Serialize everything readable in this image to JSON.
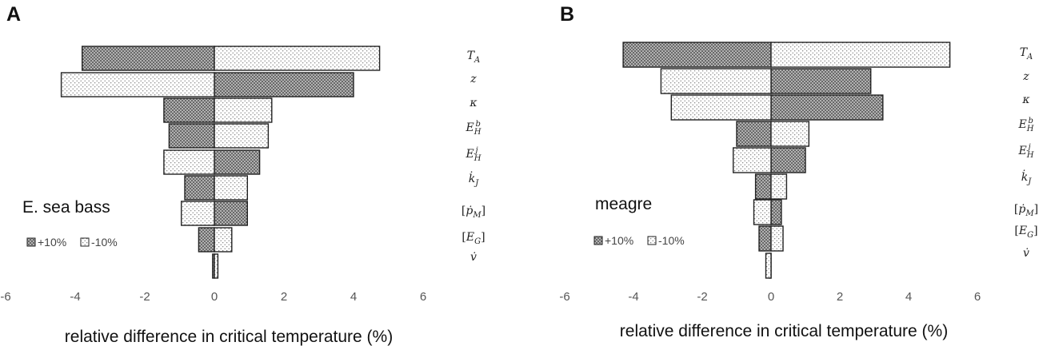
{
  "chart_data": [
    {
      "panel": "A",
      "type": "bar",
      "orientation": "horizontal",
      "species": "E. sea bass",
      "xlabel": "relative difference in critical temperature (%)",
      "xlim": [
        -6,
        6
      ],
      "xticks": [
        -6,
        -4,
        -2,
        0,
        2,
        4,
        6
      ],
      "categories": [
        "T_A",
        "z",
        "κ",
        "E_H^b",
        "E_H^j",
        "k̇_J",
        "[ṗ_M]",
        "[E_G]",
        "v̇"
      ],
      "series": [
        {
          "name": "+10%",
          "values": [
            -3.8,
            4.0,
            -1.45,
            -1.3,
            1.3,
            -0.85,
            0.95,
            -0.45,
            -0.05
          ]
        },
        {
          "name": "-10%",
          "values": [
            4.75,
            -4.4,
            1.65,
            1.55,
            -1.45,
            0.95,
            -0.95,
            0.5,
            0.1
          ]
        }
      ],
      "legend_position": "bottom-left"
    },
    {
      "panel": "B",
      "type": "bar",
      "orientation": "horizontal",
      "species": "meagre",
      "xlabel": "relative difference in critical temperature (%)",
      "xlim": [
        -6,
        6
      ],
      "xticks": [
        -6,
        -4,
        -2,
        0,
        2,
        4,
        6
      ],
      "categories": [
        "T_A",
        "z",
        "κ",
        "E_H^b",
        "E_H^j",
        "k̇_J",
        "[ṗ_M]",
        "[E_G]",
        "v̇"
      ],
      "series": [
        {
          "name": "+10%",
          "values": [
            -4.3,
            2.9,
            3.25,
            -1.0,
            1.0,
            -0.45,
            0.3,
            -0.35,
            -0.05
          ]
        },
        {
          "name": "-10%",
          "values": [
            5.2,
            -3.2,
            -2.9,
            1.1,
            -1.1,
            0.45,
            -0.5,
            0.35,
            -0.15
          ]
        }
      ],
      "legend_position": "bottom-left"
    }
  ],
  "colors": {
    "plus_fill": "#555555",
    "minus_fill": "#ffffff",
    "bar_stroke": "#222222",
    "tick_text": "#555555"
  }
}
